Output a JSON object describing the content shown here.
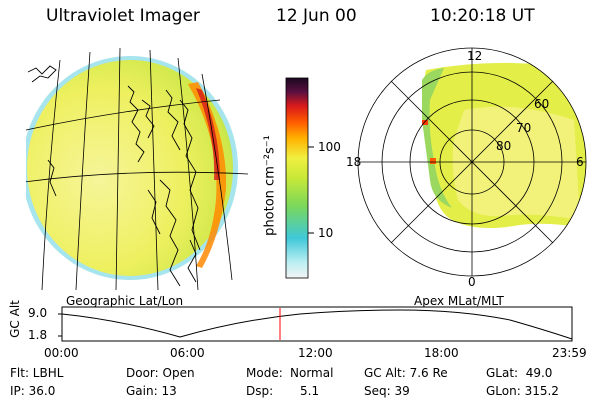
{
  "header": {
    "instrument": "Ultraviolet Imager",
    "date": "12 Jun 00",
    "time": "10:20:18 UT"
  },
  "left_panel": {
    "label": "Geographic Lat/Lon"
  },
  "right_panel": {
    "label": "Apex MLat/MLT",
    "mlt_labels": [
      "12",
      "18",
      "0",
      "6"
    ],
    "lat_labels": [
      "60",
      "70",
      "80"
    ]
  },
  "colorbar": {
    "unit_label": "photon cm⁻²s⁻¹",
    "ticks": [
      "100",
      "10"
    ],
    "scale": "log"
  },
  "altitude_plot": {
    "ylabel": "GC Alt",
    "yticks": [
      "9.0",
      "1.8"
    ],
    "xticks": [
      "00:00",
      "06:00",
      "12:00",
      "18:00",
      "23:59"
    ],
    "current_time_marker": "10:20",
    "marker_color": "#ff0000"
  },
  "info": {
    "flt": "Flt: LBHL",
    "ip": "IP: 36.0",
    "door": "Door: Open",
    "gain": "Gain: 13",
    "mode_label": "Mode:",
    "mode_value": "Normal",
    "dsp_label": "Dsp:",
    "dsp_value": "5.1",
    "gcalt": "GC Alt: 7.6 Re",
    "seq": "Seq: 39",
    "glat": "GLat:  49.0",
    "glon": "GLon: 315.2"
  }
}
